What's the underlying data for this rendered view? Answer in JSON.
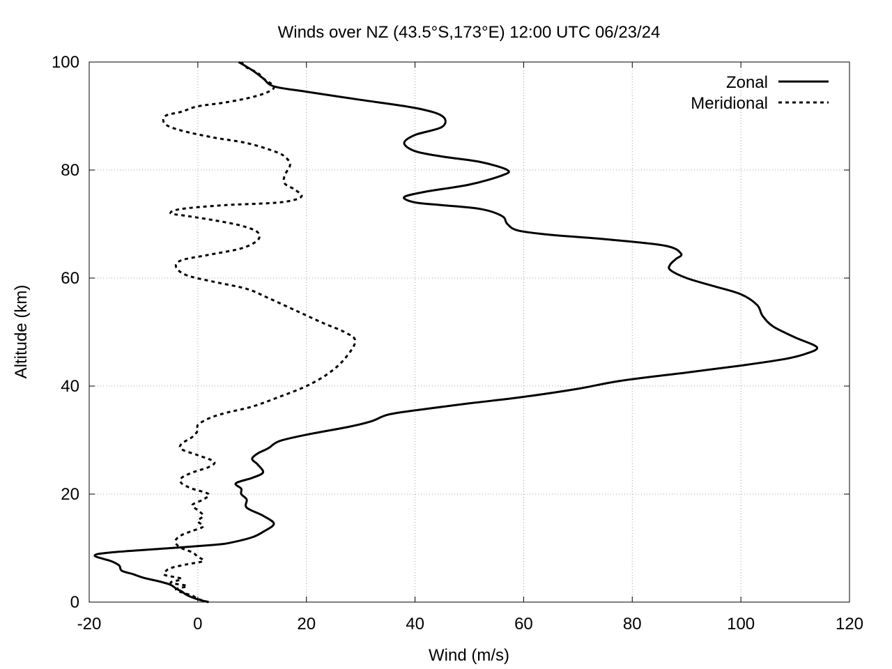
{
  "chart_data": {
    "type": "line",
    "title": "Winds over NZ (43.5°S,173°E) 12:00 UTC 06/23/24",
    "xlabel": "Wind (m/s)",
    "ylabel": "Altitude (km)",
    "xlim": [
      -20,
      120
    ],
    "ylim": [
      0,
      100
    ],
    "xticks": [
      -20,
      0,
      20,
      40,
      60,
      80,
      100,
      120
    ],
    "yticks": [
      0,
      20,
      40,
      60,
      80,
      100
    ],
    "grid": true,
    "legend": "top-right",
    "series": [
      {
        "name": "Zonal",
        "style": "solid",
        "points": [
          [
            2,
            0
          ],
          [
            0,
            0.5
          ],
          [
            -2,
            1.3
          ],
          [
            -3,
            2
          ],
          [
            -4,
            2.5
          ],
          [
            -5,
            3.2
          ],
          [
            -7,
            3.8
          ],
          [
            -10,
            4.5
          ],
          [
            -12,
            5.2
          ],
          [
            -14,
            5.8
          ],
          [
            -14.5,
            6.8
          ],
          [
            -16,
            7.6
          ],
          [
            -19,
            8.6
          ],
          [
            -16,
            9.2
          ],
          [
            -5,
            10
          ],
          [
            3,
            10.6
          ],
          [
            6,
            11
          ],
          [
            10,
            12
          ],
          [
            12,
            13
          ],
          [
            14,
            14.5
          ],
          [
            12,
            16
          ],
          [
            9,
            17.5
          ],
          [
            9,
            19
          ],
          [
            8,
            20
          ],
          [
            8,
            21
          ],
          [
            7,
            22
          ],
          [
            10,
            23
          ],
          [
            12,
            24
          ],
          [
            11,
            25.5
          ],
          [
            10,
            26.5
          ],
          [
            11,
            27.5
          ],
          [
            13,
            28.5
          ],
          [
            15,
            29.8
          ],
          [
            20,
            31
          ],
          [
            28,
            32.5
          ],
          [
            32,
            33.5
          ],
          [
            35,
            34.7
          ],
          [
            40,
            35.5
          ],
          [
            50,
            36.8
          ],
          [
            60,
            38
          ],
          [
            70,
            39.5
          ],
          [
            78,
            41
          ],
          [
            90,
            42.5
          ],
          [
            100,
            43.8
          ],
          [
            108,
            45
          ],
          [
            112,
            46
          ],
          [
            114,
            47.2
          ],
          [
            110,
            49
          ],
          [
            106,
            51
          ],
          [
            104,
            53
          ],
          [
            103,
            55
          ],
          [
            100,
            57
          ],
          [
            95,
            58.5
          ],
          [
            90,
            60
          ],
          [
            87,
            61.5
          ],
          [
            87,
            62.5
          ],
          [
            88,
            63.5
          ],
          [
            89,
            64.5
          ],
          [
            86,
            66
          ],
          [
            75,
            67.2
          ],
          [
            65,
            68
          ],
          [
            59,
            68.8
          ],
          [
            57,
            70
          ],
          [
            56,
            71.5
          ],
          [
            52,
            72.8
          ],
          [
            45,
            73.5
          ],
          [
            40,
            74
          ],
          [
            38,
            75
          ],
          [
            42,
            76
          ],
          [
            50,
            77.3
          ],
          [
            56,
            79
          ],
          [
            57,
            80
          ],
          [
            52,
            81.5
          ],
          [
            45,
            82.5
          ],
          [
            40,
            83.5
          ],
          [
            38,
            85
          ],
          [
            40,
            86.5
          ],
          [
            45,
            88
          ],
          [
            45,
            90
          ],
          [
            40,
            91.5
          ],
          [
            30,
            93
          ],
          [
            20,
            94.5
          ],
          [
            14,
            95.5
          ],
          [
            12,
            97
          ],
          [
            10,
            98.5
          ],
          [
            7.5,
            100
          ]
        ]
      },
      {
        "name": "Meridional",
        "style": "dashed",
        "points": [
          [
            2,
            0
          ],
          [
            0,
            0.6
          ],
          [
            -1,
            1.2
          ],
          [
            -3,
            1.8
          ],
          [
            -4,
            2.4
          ],
          [
            -2,
            3
          ],
          [
            -5,
            3.6
          ],
          [
            -3,
            4.3
          ],
          [
            -6,
            5
          ],
          [
            -6,
            5.6
          ],
          [
            -5,
            6.3
          ],
          [
            -2,
            7
          ],
          [
            1,
            7.6
          ],
          [
            0,
            8.4
          ],
          [
            -1,
            9.2
          ],
          [
            -3,
            10
          ],
          [
            -4,
            10.8
          ],
          [
            -4,
            11.6
          ],
          [
            -3,
            12.4
          ],
          [
            -1,
            13.2
          ],
          [
            1,
            14
          ],
          [
            0,
            15
          ],
          [
            1,
            16
          ],
          [
            0,
            17
          ],
          [
            -1,
            18
          ],
          [
            1,
            19
          ],
          [
            2,
            20
          ],
          [
            -1,
            21
          ],
          [
            -3,
            22
          ],
          [
            -3,
            23
          ],
          [
            -1,
            24
          ],
          [
            2,
            25
          ],
          [
            3,
            26
          ],
          [
            0,
            27.2
          ],
          [
            -3,
            28.3
          ],
          [
            -3,
            29.3
          ],
          [
            -1,
            30.6
          ],
          [
            0,
            31.8
          ],
          [
            0,
            32.8
          ],
          [
            2,
            34
          ],
          [
            5,
            35
          ],
          [
            10,
            36.2
          ],
          [
            15,
            38
          ],
          [
            20,
            40
          ],
          [
            24,
            42.3
          ],
          [
            27,
            45
          ],
          [
            29,
            48.3
          ],
          [
            27,
            50
          ],
          [
            23,
            51.7
          ],
          [
            18,
            54
          ],
          [
            13,
            56.3
          ],
          [
            9,
            58
          ],
          [
            3,
            59.3
          ],
          [
            -2,
            60.5
          ],
          [
            -4,
            62
          ],
          [
            -3,
            63.3
          ],
          [
            2,
            64.3
          ],
          [
            8,
            65.5
          ],
          [
            11,
            67
          ],
          [
            11,
            68.5
          ],
          [
            8,
            69.7
          ],
          [
            3,
            70.7
          ],
          [
            -2,
            71.5
          ],
          [
            -5,
            72
          ],
          [
            -3,
            72.8
          ],
          [
            5,
            73.5
          ],
          [
            15,
            74
          ],
          [
            19,
            75
          ],
          [
            18,
            76.3
          ],
          [
            16,
            77.5
          ],
          [
            16,
            79
          ],
          [
            17,
            81
          ],
          [
            16,
            82.5
          ],
          [
            14,
            83.5
          ],
          [
            9,
            85
          ],
          [
            3,
            86
          ],
          [
            -3,
            87.3
          ],
          [
            -6,
            88.5
          ],
          [
            -6,
            90
          ],
          [
            -3,
            90.8
          ],
          [
            0,
            91.8
          ],
          [
            5,
            92.5
          ],
          [
            10,
            93.5
          ],
          [
            13,
            94.5
          ],
          [
            14,
            95.5
          ],
          [
            12,
            97
          ],
          [
            11,
            98
          ],
          [
            9,
            99
          ],
          [
            8,
            100
          ]
        ]
      }
    ]
  }
}
